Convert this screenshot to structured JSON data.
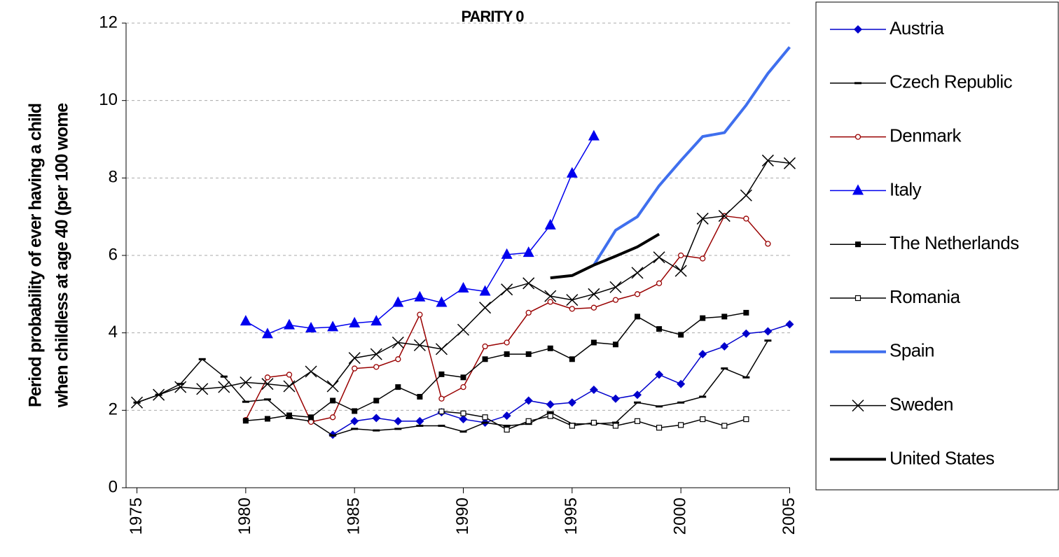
{
  "chart_data": {
    "type": "line",
    "title": "PARITY 0",
    "ylabel": [
      "Period probability of ever having a child",
      "when childless at age 40 (per 100 wome"
    ],
    "x": [
      1975,
      1976,
      1977,
      1978,
      1979,
      1980,
      1981,
      1982,
      1983,
      1984,
      1985,
      1986,
      1987,
      1988,
      1989,
      1990,
      1991,
      1992,
      1993,
      1994,
      1995,
      1996,
      1997,
      1998,
      1999,
      2000,
      2001,
      2002,
      2003,
      2004,
      2005
    ],
    "xlim": [
      1974.5,
      2005.5
    ],
    "xticks": [
      1975,
      1980,
      1985,
      1990,
      1995,
      2000,
      2005
    ],
    "ylim": [
      0,
      12
    ],
    "yticks": [
      0,
      2,
      4,
      6,
      8,
      10,
      12
    ],
    "grid": true,
    "legend": "right",
    "series": [
      {
        "name": "Austria",
        "color": "#0000cc",
        "marker": "diamond",
        "width": 1.5,
        "values": [
          null,
          null,
          null,
          null,
          null,
          null,
          null,
          null,
          null,
          1.37,
          1.72,
          1.8,
          1.72,
          1.72,
          1.95,
          1.77,
          1.68,
          1.86,
          2.25,
          2.15,
          2.2,
          2.53,
          2.3,
          2.4,
          2.92,
          2.68,
          3.45,
          3.65,
          3.98,
          4.04,
          4.22
        ]
      },
      {
        "name": "Czech Republic",
        "color": "#000000",
        "marker": "dash",
        "width": 1.5,
        "values": [
          2.2,
          2.4,
          2.68,
          3.32,
          2.87,
          2.22,
          2.28,
          1.8,
          1.72,
          1.35,
          1.52,
          1.48,
          1.52,
          1.6,
          1.6,
          1.45,
          1.68,
          1.6,
          1.65,
          1.95,
          1.65,
          1.65,
          1.68,
          2.2,
          2.1,
          2.2,
          2.35,
          3.08,
          2.85,
          3.8,
          null
        ]
      },
      {
        "name": "Denmark",
        "color": "#990000",
        "marker": "circle",
        "width": 1.5,
        "values": [
          null,
          null,
          null,
          null,
          null,
          1.75,
          2.85,
          2.92,
          1.7,
          1.82,
          3.08,
          3.12,
          3.32,
          4.47,
          2.3,
          2.6,
          3.65,
          3.75,
          4.52,
          4.8,
          4.62,
          4.65,
          4.85,
          5.0,
          5.28,
          6.0,
          5.92,
          7.02,
          6.95,
          6.3,
          null
        ]
      },
      {
        "name": "Italy",
        "color": "#0000ee",
        "marker": "triangle",
        "width": 1.5,
        "values": [
          null,
          null,
          null,
          null,
          null,
          4.3,
          3.97,
          4.2,
          4.12,
          4.15,
          4.25,
          4.3,
          4.78,
          4.92,
          4.78,
          5.15,
          5.07,
          6.02,
          6.07,
          6.78,
          8.12,
          9.08,
          null,
          null,
          null,
          null,
          null,
          null,
          null,
          null,
          null
        ]
      },
      {
        "name": "The Netherlands",
        "color": "#000000",
        "marker": "square",
        "width": 1.5,
        "values": [
          null,
          null,
          null,
          null,
          null,
          1.73,
          1.78,
          1.87,
          1.82,
          2.25,
          1.98,
          2.25,
          2.6,
          2.35,
          2.93,
          2.85,
          3.32,
          3.45,
          3.45,
          3.6,
          3.32,
          3.75,
          3.7,
          4.42,
          4.1,
          3.95,
          4.38,
          4.42,
          4.52,
          null,
          null
        ]
      },
      {
        "name": "Romania",
        "color": "#000000",
        "marker": "open-square",
        "width": 1.5,
        "values": [
          null,
          null,
          null,
          null,
          null,
          null,
          null,
          null,
          null,
          null,
          null,
          null,
          null,
          null,
          1.97,
          1.92,
          1.82,
          1.5,
          1.72,
          1.85,
          1.6,
          1.68,
          1.6,
          1.72,
          1.55,
          1.62,
          1.77,
          1.6,
          1.77,
          null,
          null
        ]
      },
      {
        "name": "Spain",
        "color": "#3f6fee",
        "marker": "none",
        "width": 4,
        "values": [
          null,
          null,
          null,
          null,
          null,
          null,
          null,
          null,
          null,
          null,
          null,
          null,
          null,
          null,
          null,
          null,
          null,
          null,
          null,
          null,
          null,
          5.75,
          6.65,
          7.0,
          7.8,
          8.45,
          9.07,
          9.17,
          9.88,
          10.7,
          11.38
        ]
      },
      {
        "name": "Sweden",
        "color": "#000000",
        "marker": "x",
        "width": 1.5,
        "values": [
          2.2,
          2.4,
          2.6,
          2.55,
          2.6,
          2.72,
          2.68,
          2.62,
          3.0,
          2.62,
          3.35,
          3.45,
          3.75,
          3.68,
          3.58,
          4.08,
          4.65,
          5.12,
          5.28,
          4.95,
          4.85,
          5.0,
          5.18,
          5.55,
          5.95,
          5.6,
          6.95,
          7.02,
          7.55,
          8.45,
          8.38
        ]
      },
      {
        "name": "United States",
        "color": "#000000",
        "marker": "none",
        "width": 4,
        "values": [
          null,
          null,
          null,
          null,
          null,
          null,
          null,
          null,
          null,
          null,
          null,
          null,
          null,
          null,
          null,
          null,
          null,
          null,
          null,
          5.42,
          5.48,
          5.75,
          5.98,
          6.22,
          6.55,
          null,
          null,
          null,
          null,
          null,
          null
        ]
      }
    ]
  }
}
